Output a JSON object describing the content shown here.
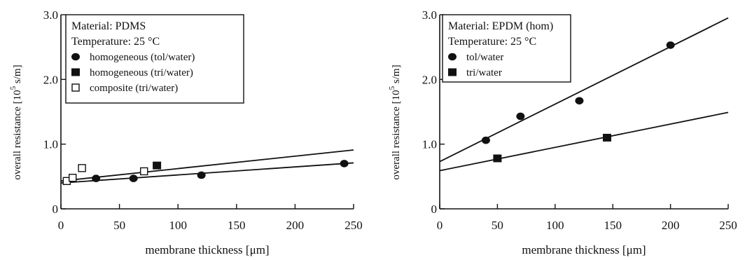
{
  "chart_data": [
    {
      "type": "scatter",
      "xlabel": "membrane thickness [μm]",
      "ylabel": "overall resistance [10",
      "ylabel_exp": "5",
      "ylabel_unit": " s/m]",
      "xlim": [
        0,
        250
      ],
      "ylim": [
        0,
        3.0
      ],
      "x_ticks": [
        "0",
        "50",
        "100",
        "150",
        "200",
        "250"
      ],
      "y_ticks": [
        "0",
        "1.0",
        "2.0",
        "3.0"
      ],
      "legend": {
        "lines": [
          "Material: PDMS",
          "Temperature: 25 °C"
        ],
        "position": "top-left",
        "entries": [
          {
            "label": "homogeneous (tol/water)",
            "marker": "filled-circle"
          },
          {
            "label": "homogeneous (tri/water)",
            "marker": "filled-square"
          },
          {
            "label": "composite (tri/water)",
            "marker": "open-square"
          }
        ]
      },
      "series": [
        {
          "marker": "filled-circle",
          "x": [
            30,
            62,
            120,
            242
          ],
          "y": [
            0.47,
            0.47,
            0.52,
            0.7
          ]
        },
        {
          "marker": "filled-square",
          "x": [
            82
          ],
          "y": [
            0.67
          ]
        },
        {
          "marker": "open-square",
          "x": [
            5,
            10,
            18,
            71
          ],
          "y": [
            0.43,
            0.48,
            0.63,
            0.58
          ]
        }
      ],
      "fit_lines": [
        {
          "x": [
            0,
            250
          ],
          "y": [
            0.43,
            0.91
          ]
        },
        {
          "x": [
            0,
            250
          ],
          "y": [
            0.4,
            0.71
          ]
        }
      ]
    },
    {
      "type": "scatter",
      "xlabel": "membrane thickness [μm]",
      "ylabel": "overall resistance [10",
      "ylabel_exp": "5",
      "ylabel_unit": " s/m]",
      "xlim": [
        0,
        250
      ],
      "ylim": [
        0,
        3.0
      ],
      "x_ticks": [
        "0",
        "50",
        "100",
        "150",
        "200",
        "250"
      ],
      "y_ticks": [
        "0",
        "1.0",
        "2.0",
        "3.0"
      ],
      "legend": {
        "lines": [
          "Material: EPDM (hom)",
          "Temperature: 25 °C"
        ],
        "position": "top-left",
        "entries": [
          {
            "label": "tol/water",
            "marker": "filled-circle"
          },
          {
            "label": "tri/water",
            "marker": "filled-square"
          }
        ]
      },
      "series": [
        {
          "marker": "filled-circle",
          "x": [
            40,
            70,
            121,
            200
          ],
          "y": [
            1.06,
            1.43,
            1.67,
            2.53
          ]
        },
        {
          "marker": "filled-square",
          "x": [
            50,
            145
          ],
          "y": [
            0.78,
            1.1
          ]
        }
      ],
      "fit_lines": [
        {
          "x": [
            0,
            250
          ],
          "y": [
            0.73,
            2.95
          ]
        },
        {
          "x": [
            0,
            250
          ],
          "y": [
            0.59,
            1.49
          ]
        }
      ]
    }
  ]
}
